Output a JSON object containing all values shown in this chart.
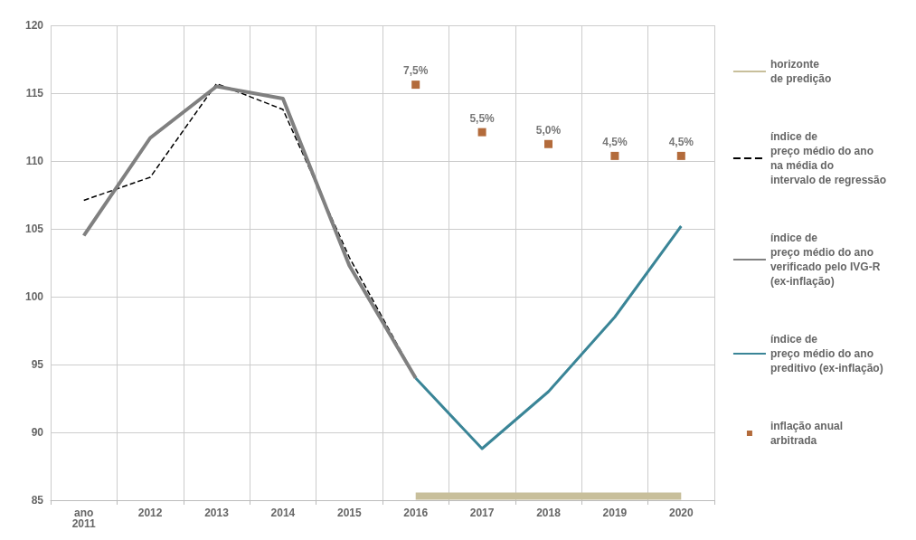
{
  "chart_data": {
    "type": "line",
    "categories": [
      "ano\n2011",
      "2012",
      "2013",
      "2014",
      "2015",
      "2016",
      "2017",
      "2018",
      "2019",
      "2020"
    ],
    "series": [
      {
        "name": "horizonte\nde predição",
        "color": "#c8bf9b",
        "type": "line",
        "values": [
          null,
          null,
          null,
          null,
          null,
          85.3,
          85.3,
          85.3,
          85.3,
          85.3
        ]
      },
      {
        "name": "índice de\npreço médio do ano\nna média do\nintervalo de regressão",
        "color": "#000000",
        "line_style": "dashed",
        "values": [
          107.1,
          108.8,
          115.7,
          113.8,
          102.9,
          94.0,
          null,
          null,
          null,
          null
        ]
      },
      {
        "name": "índice de\npreço médio do ano\nverificado pelo IVG-R\n(ex-inflação)",
        "color": "#808080",
        "values": [
          104.5,
          111.7,
          115.5,
          114.6,
          102.3,
          94.0,
          null,
          null,
          null,
          null
        ]
      },
      {
        "name": "índice de\npreço médio do ano\npreditivo (ex-inflação)",
        "color": "#3a8597",
        "values": [
          null,
          null,
          null,
          null,
          null,
          94.0,
          88.8,
          93.0,
          98.5,
          105.2
        ]
      },
      {
        "name": "inflação anual\narbitrada",
        "color": "#a0460a",
        "type": "scatter",
        "marker": "square",
        "axis": "y2",
        "values": [
          null,
          null,
          null,
          null,
          null,
          7.5,
          5.5,
          5.0,
          4.5,
          4.5
        ],
        "value_labels": [
          null,
          null,
          null,
          null,
          null,
          "7,5%",
          "5,5%",
          "5,0%",
          "4,5%",
          "4,5%"
        ]
      }
    ],
    "y2lim": [
      -10,
      10
    ],
    "ylim": [
      85,
      120
    ],
    "yticks": [
      85,
      90,
      95,
      100,
      105,
      110,
      115,
      120
    ],
    "grid": true,
    "legend": "right",
    "marker": "none",
    "line_style": "solid"
  }
}
